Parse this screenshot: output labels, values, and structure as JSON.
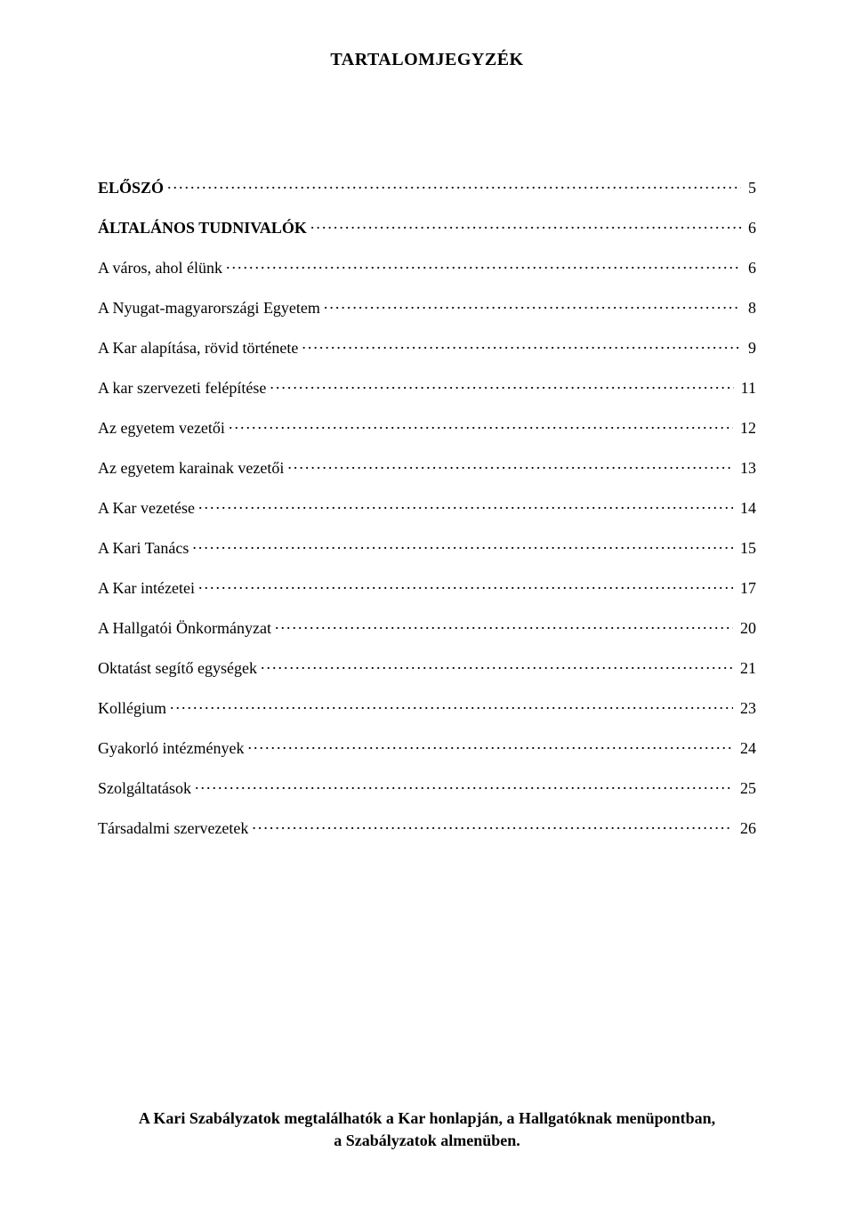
{
  "background_color": "#ffffff",
  "text_color": "#000000",
  "font_family": "Times New Roman",
  "title": "TARTALOMJEGYZÉK",
  "title_fontsize": 20,
  "body_fontsize": 18,
  "toc": [
    {
      "label": "ELŐSZÓ",
      "page": "5",
      "bold": true
    },
    {
      "label": "ÁLTALÁNOS TUDNIVALÓK",
      "page": "6",
      "bold": true
    },
    {
      "label": "A város, ahol élünk",
      "page": "6",
      "bold": false
    },
    {
      "label": "A Nyugat-magyarországi Egyetem",
      "page": "8",
      "bold": false
    },
    {
      "label": "A Kar alapítása, rövid története",
      "page": "9",
      "bold": false
    },
    {
      "label": "A kar szervezeti felépítése",
      "page": "11",
      "bold": false
    },
    {
      "label": "Az egyetem vezetői",
      "page": "12",
      "bold": false
    },
    {
      "label": "Az egyetem karainak vezetői",
      "page": "13",
      "bold": false
    },
    {
      "label": "A Kar vezetése",
      "page": "14",
      "bold": false
    },
    {
      "label": "A Kari Tanács",
      "page": "15",
      "bold": false
    },
    {
      "label": "A Kar intézetei",
      "page": "17",
      "bold": false
    },
    {
      "label": "A Hallgatói Önkormányzat",
      "page": "20",
      "bold": false
    },
    {
      "label": "Oktatást segítő egységek",
      "page": "21",
      "bold": false
    },
    {
      "label": "Kollégium",
      "page": "23",
      "bold": false
    },
    {
      "label": "Gyakorló intézmények",
      "page": "24",
      "bold": false
    },
    {
      "label": "Szolgáltatások",
      "page": "25",
      "bold": false
    },
    {
      "label": "Társadalmi szervezetek",
      "page": "26",
      "bold": false
    }
  ],
  "footer_line1": "A Kari Szabályzatok megtalálhatók a Kar honlapján, a Hallgatóknak menüpontban,",
  "footer_line2": "a Szabályzatok almenüben."
}
